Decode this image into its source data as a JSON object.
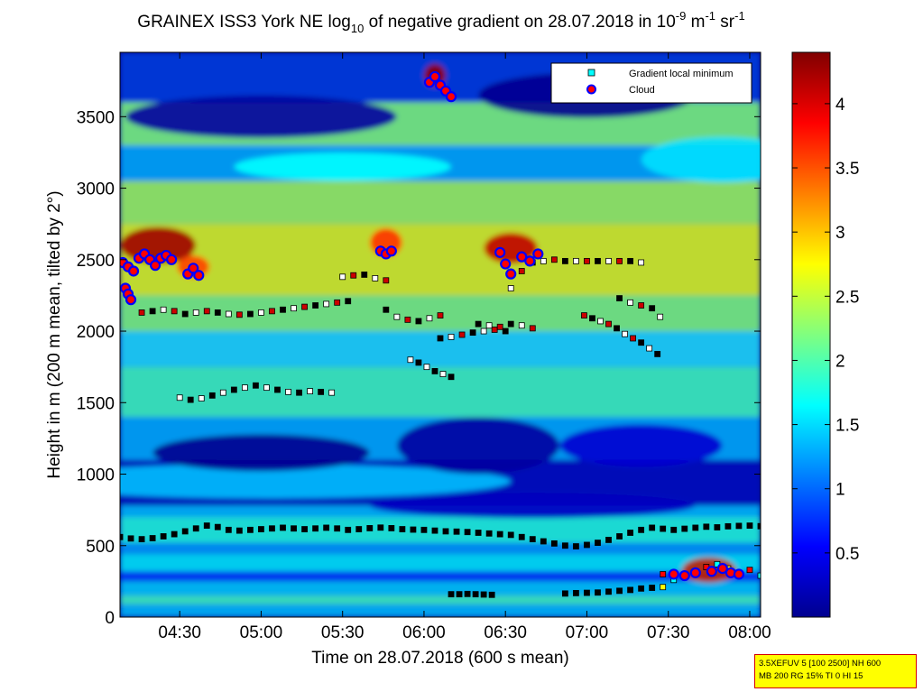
{
  "chart_data": {
    "type": "heatmap",
    "title": "GRAINEX ISS3 York NE log",
    "title_sub": "10",
    "title_rest": " of negative gradient on 28.07.2018 in 10",
    "title_sup1": "-9",
    "title_unit1": " m",
    "title_sup2": "-1",
    "title_unit2": " sr",
    "title_sup3": "-1",
    "xlabel": "Time on 28.07.2018 (600 s mean)",
    "ylabel": "Height in m (200 m mean, tilted by 2°)",
    "x_ticks": [
      "04:30",
      "05:00",
      "05:30",
      "06:00",
      "06:30",
      "07:00",
      "07:30",
      "08:00"
    ],
    "x_tick_minutes": [
      270,
      300,
      330,
      360,
      390,
      420,
      450,
      480
    ],
    "xlim_minutes": [
      248,
      484
    ],
    "y_ticks": [
      "0",
      "500",
      "1000",
      "1500",
      "2000",
      "2500",
      "3000",
      "3500"
    ],
    "y_tick_values": [
      0,
      500,
      1000,
      1500,
      2000,
      2500,
      3000,
      3500
    ],
    "ylim": [
      0,
      3950
    ],
    "colorbar": {
      "ticks": [
        "0.5",
        "1",
        "1.5",
        "2",
        "2.5",
        "3",
        "3.5",
        "4"
      ],
      "tick_values": [
        0.5,
        1,
        1.5,
        2,
        2.5,
        3,
        3.5,
        4
      ],
      "range": [
        0,
        4.4
      ],
      "colormap": "jet"
    },
    "legend": {
      "placement": "top-right",
      "entries": [
        {
          "label": "Gradient local minimum",
          "marker": "square",
          "color": "#00ffff"
        },
        {
          "label": "Cloud",
          "marker": "circle",
          "color": "#ff0000"
        }
      ]
    },
    "series": [
      {
        "name": "Gradient local minimum",
        "points": [
          [
            248,
            560
          ],
          [
            252,
            550
          ],
          [
            256,
            545
          ],
          [
            260,
            552
          ],
          [
            264,
            565
          ],
          [
            268,
            580
          ],
          [
            272,
            600
          ],
          [
            276,
            620
          ],
          [
            280,
            640
          ],
          [
            284,
            630
          ],
          [
            288,
            610
          ],
          [
            292,
            605
          ],
          [
            296,
            610
          ],
          [
            300,
            615
          ],
          [
            304,
            620
          ],
          [
            308,
            625
          ],
          [
            312,
            620
          ],
          [
            316,
            615
          ],
          [
            320,
            620
          ],
          [
            324,
            625
          ],
          [
            328,
            620
          ],
          [
            332,
            610
          ],
          [
            336,
            615
          ],
          [
            340,
            622
          ],
          [
            344,
            626
          ],
          [
            348,
            622
          ],
          [
            352,
            615
          ],
          [
            356,
            612
          ],
          [
            360,
            610
          ],
          [
            364,
            605
          ],
          [
            368,
            600
          ],
          [
            372,
            598
          ],
          [
            376,
            595
          ],
          [
            380,
            590
          ],
          [
            384,
            585
          ],
          [
            388,
            580
          ],
          [
            392,
            575
          ],
          [
            396,
            560
          ],
          [
            400,
            545
          ],
          [
            404,
            530
          ],
          [
            408,
            515
          ],
          [
            412,
            500
          ],
          [
            416,
            495
          ],
          [
            420,
            505
          ],
          [
            424,
            520
          ],
          [
            428,
            540
          ],
          [
            432,
            565
          ],
          [
            436,
            590
          ],
          [
            440,
            610
          ],
          [
            444,
            625
          ],
          [
            448,
            618
          ],
          [
            452,
            610
          ],
          [
            456,
            618
          ],
          [
            460,
            625
          ],
          [
            464,
            632
          ],
          [
            468,
            628
          ],
          [
            472,
            635
          ],
          [
            476,
            638
          ],
          [
            480,
            640
          ],
          [
            484,
            636
          ],
          [
            370,
            160
          ],
          [
            373,
            160
          ],
          [
            376,
            162
          ],
          [
            379,
            160
          ],
          [
            382,
            158
          ],
          [
            385,
            156
          ],
          [
            412,
            165
          ],
          [
            416,
            168
          ],
          [
            420,
            170
          ],
          [
            424,
            172
          ],
          [
            428,
            178
          ],
          [
            432,
            184
          ],
          [
            436,
            190
          ],
          [
            440,
            200
          ],
          [
            444,
            205
          ],
          [
            448,
            210
          ],
          [
            256,
            2130
          ],
          [
            260,
            2140
          ],
          [
            264,
            2150
          ],
          [
            268,
            2140
          ],
          [
            272,
            2120
          ],
          [
            276,
            2130
          ],
          [
            280,
            2140
          ],
          [
            284,
            2130
          ],
          [
            288,
            2120
          ],
          [
            292,
            2115
          ],
          [
            296,
            2120
          ],
          [
            300,
            2130
          ],
          [
            304,
            2140
          ],
          [
            308,
            2150
          ],
          [
            312,
            2160
          ],
          [
            316,
            2170
          ],
          [
            320,
            2180
          ],
          [
            324,
            2190
          ],
          [
            328,
            2200
          ],
          [
            332,
            2210
          ],
          [
            270,
            1535
          ],
          [
            274,
            1520
          ],
          [
            278,
            1530
          ],
          [
            282,
            1550
          ],
          [
            286,
            1570
          ],
          [
            290,
            1590
          ],
          [
            294,
            1605
          ],
          [
            298,
            1620
          ],
          [
            302,
            1605
          ],
          [
            306,
            1590
          ],
          [
            310,
            1575
          ],
          [
            314,
            1570
          ],
          [
            318,
            1580
          ],
          [
            322,
            1575
          ],
          [
            326,
            1570
          ],
          [
            330,
            2380
          ],
          [
            334,
            2390
          ],
          [
            338,
            2395
          ],
          [
            342,
            2370
          ],
          [
            346,
            2355
          ],
          [
            355,
            1800
          ],
          [
            358,
            1780
          ],
          [
            361,
            1750
          ],
          [
            364,
            1720
          ],
          [
            367,
            1700
          ],
          [
            370,
            1680
          ],
          [
            366,
            1950
          ],
          [
            370,
            1960
          ],
          [
            374,
            1975
          ],
          [
            378,
            1990
          ],
          [
            382,
            2000
          ],
          [
            386,
            2010
          ],
          [
            390,
            2000
          ],
          [
            392,
            2300
          ],
          [
            396,
            2420
          ],
          [
            400,
            2480
          ],
          [
            404,
            2490
          ],
          [
            408,
            2500
          ],
          [
            412,
            2490
          ],
          [
            416,
            2490
          ],
          [
            420,
            2490
          ],
          [
            424,
            2490
          ],
          [
            428,
            2490
          ],
          [
            432,
            2490
          ],
          [
            436,
            2490
          ],
          [
            440,
            2480
          ],
          [
            419,
            2110
          ],
          [
            422,
            2090
          ],
          [
            425,
            2070
          ],
          [
            428,
            2050
          ],
          [
            431,
            2020
          ],
          [
            434,
            1980
          ],
          [
            437,
            1950
          ],
          [
            440,
            1920
          ],
          [
            443,
            1880
          ],
          [
            446,
            1840
          ],
          [
            432,
            2230
          ],
          [
            436,
            2200
          ],
          [
            440,
            2180
          ],
          [
            444,
            2160
          ],
          [
            447,
            2100
          ],
          [
            448,
            300
          ],
          [
            452,
            260
          ],
          [
            456,
            290
          ],
          [
            460,
            320
          ],
          [
            464,
            350
          ],
          [
            468,
            370
          ],
          [
            472,
            340
          ],
          [
            476,
            310
          ],
          [
            480,
            330
          ],
          [
            484,
            290
          ],
          [
            346,
            2150
          ],
          [
            350,
            2100
          ],
          [
            354,
            2080
          ],
          [
            358,
            2070
          ],
          [
            362,
            2090
          ],
          [
            366,
            2110
          ],
          [
            380,
            2050
          ],
          [
            384,
            2040
          ],
          [
            388,
            2030
          ],
          [
            392,
            2050
          ],
          [
            396,
            2040
          ],
          [
            400,
            2020
          ]
        ]
      },
      {
        "name": "Cloud",
        "points": [
          [
            249,
            2480
          ],
          [
            251,
            2450
          ],
          [
            253,
            2420
          ],
          [
            255,
            2510
          ],
          [
            257,
            2540
          ],
          [
            259,
            2500
          ],
          [
            261,
            2460
          ],
          [
            263,
            2510
          ],
          [
            265,
            2530
          ],
          [
            267,
            2500
          ],
          [
            250,
            2300
          ],
          [
            251,
            2260
          ],
          [
            252,
            2220
          ],
          [
            273,
            2400
          ],
          [
            275,
            2440
          ],
          [
            277,
            2390
          ],
          [
            344,
            2560
          ],
          [
            346,
            2540
          ],
          [
            348,
            2560
          ],
          [
            362,
            3740
          ],
          [
            364,
            3780
          ],
          [
            366,
            3720
          ],
          [
            368,
            3680
          ],
          [
            370,
            3640
          ],
          [
            388,
            2550
          ],
          [
            390,
            2470
          ],
          [
            392,
            2400
          ],
          [
            396,
            2520
          ],
          [
            399,
            2490
          ],
          [
            402,
            2540
          ],
          [
            452,
            300
          ],
          [
            456,
            290
          ],
          [
            460,
            310
          ],
          [
            466,
            320
          ],
          [
            470,
            340
          ],
          [
            473,
            310
          ],
          [
            476,
            300
          ]
        ]
      }
    ]
  },
  "info_box": {
    "line1": "3.5XEFUV 5 [100 2500] NH 600",
    "line2": "MB 200 RG 15% TI 0 HI 15"
  }
}
